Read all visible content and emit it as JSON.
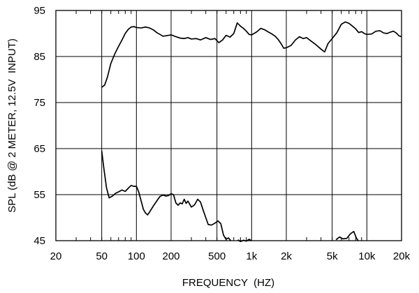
{
  "chart_data": {
    "type": "line",
    "xlabel": "FREQUENCY  (HZ)",
    "ylabel": "SPL (dB @ 2 METER, 12.5V  INPUT)",
    "x_scale": "log",
    "xlim": [
      20,
      20000
    ],
    "ylim": [
      45,
      95
    ],
    "x_ticks": [
      {
        "value": 20,
        "label": "20"
      },
      {
        "value": 50,
        "label": "50"
      },
      {
        "value": 100,
        "label": "100"
      },
      {
        "value": 200,
        "label": "200"
      },
      {
        "value": 500,
        "label": "500"
      },
      {
        "value": 1000,
        "label": "1k"
      },
      {
        "value": 2000,
        "label": "2k"
      },
      {
        "value": 5000,
        "label": "5k"
      },
      {
        "value": 10000,
        "label": "10k"
      },
      {
        "value": 20000,
        "label": "20k"
      }
    ],
    "y_ticks": [
      {
        "value": 45,
        "label": "45"
      },
      {
        "value": 55,
        "label": "55"
      },
      {
        "value": 65,
        "label": "65"
      },
      {
        "value": 75,
        "label": "75"
      },
      {
        "value": 85,
        "label": "85"
      },
      {
        "value": 95,
        "label": "95"
      }
    ],
    "grid": true,
    "series": [
      {
        "points": [
          [
            50,
            78.3
          ],
          [
            53,
            78.8
          ],
          [
            56,
            80.5
          ],
          [
            60,
            83.5
          ],
          [
            65,
            85.6
          ],
          [
            70,
            87.2
          ],
          [
            75,
            88.6
          ],
          [
            80,
            90.0
          ],
          [
            85,
            90.9
          ],
          [
            90,
            91.4
          ],
          [
            95,
            91.5
          ],
          [
            100,
            91.3
          ],
          [
            110,
            91.2
          ],
          [
            120,
            91.4
          ],
          [
            130,
            91.2
          ],
          [
            140,
            90.8
          ],
          [
            150,
            90.2
          ],
          [
            160,
            89.8
          ],
          [
            170,
            89.4
          ],
          [
            180,
            89.5
          ],
          [
            200,
            89.7
          ],
          [
            220,
            89.3
          ],
          [
            240,
            89.0
          ],
          [
            260,
            88.9
          ],
          [
            280,
            89.1
          ],
          [
            300,
            88.8
          ],
          [
            330,
            88.9
          ],
          [
            360,
            88.6
          ],
          [
            400,
            89.1
          ],
          [
            440,
            88.7
          ],
          [
            480,
            88.9
          ],
          [
            520,
            88.0
          ],
          [
            560,
            88.6
          ],
          [
            600,
            89.6
          ],
          [
            650,
            89.2
          ],
          [
            700,
            90.0
          ],
          [
            750,
            92.3
          ],
          [
            800,
            91.6
          ],
          [
            850,
            91.1
          ],
          [
            900,
            90.5
          ],
          [
            950,
            89.8
          ],
          [
            1000,
            89.7
          ],
          [
            1100,
            90.3
          ],
          [
            1200,
            91.1
          ],
          [
            1300,
            90.8
          ],
          [
            1400,
            90.3
          ],
          [
            1500,
            89.9
          ],
          [
            1600,
            89.4
          ],
          [
            1700,
            88.7
          ],
          [
            1800,
            87.8
          ],
          [
            1900,
            86.8
          ],
          [
            2000,
            86.9
          ],
          [
            2200,
            87.4
          ],
          [
            2400,
            88.6
          ],
          [
            2600,
            89.3
          ],
          [
            2800,
            88.9
          ],
          [
            3000,
            89.1
          ],
          [
            3300,
            88.3
          ],
          [
            3600,
            87.6
          ],
          [
            4000,
            86.6
          ],
          [
            4300,
            86.0
          ],
          [
            4600,
            87.8
          ],
          [
            5000,
            88.9
          ],
          [
            5500,
            90.2
          ],
          [
            6000,
            92.0
          ],
          [
            6500,
            92.5
          ],
          [
            7000,
            92.2
          ],
          [
            7500,
            91.6
          ],
          [
            8000,
            91.0
          ],
          [
            8500,
            90.2
          ],
          [
            9000,
            90.4
          ],
          [
            9500,
            90.0
          ],
          [
            10000,
            89.8
          ],
          [
            11000,
            89.9
          ],
          [
            12000,
            90.5
          ],
          [
            13000,
            90.6
          ],
          [
            14000,
            90.1
          ],
          [
            15000,
            90.0
          ],
          [
            16000,
            90.3
          ],
          [
            17000,
            90.5
          ],
          [
            18000,
            90.1
          ],
          [
            19000,
            89.5
          ],
          [
            20000,
            89.3
          ]
        ]
      },
      {
        "points": [
          [
            50,
            64.5
          ],
          [
            52,
            61.0
          ],
          [
            55,
            56.5
          ],
          [
            58,
            54.3
          ],
          [
            62,
            54.7
          ],
          [
            66,
            55.3
          ],
          [
            70,
            55.6
          ],
          [
            75,
            56.0
          ],
          [
            80,
            55.7
          ],
          [
            85,
            56.4
          ],
          [
            90,
            57.0
          ],
          [
            95,
            56.8
          ],
          [
            100,
            56.8
          ],
          [
            105,
            55.5
          ],
          [
            110,
            53.6
          ],
          [
            115,
            51.8
          ],
          [
            120,
            51.0
          ],
          [
            125,
            50.6
          ],
          [
            130,
            51.2
          ],
          [
            140,
            52.5
          ],
          [
            150,
            53.6
          ],
          [
            160,
            54.6
          ],
          [
            170,
            54.9
          ],
          [
            180,
            54.7
          ],
          [
            190,
            54.8
          ],
          [
            200,
            55.2
          ],
          [
            210,
            55.0
          ],
          [
            220,
            53.2
          ],
          [
            230,
            52.7
          ],
          [
            240,
            53.2
          ],
          [
            250,
            53.0
          ],
          [
            260,
            54.0
          ],
          [
            270,
            53.1
          ],
          [
            280,
            53.6
          ],
          [
            300,
            52.3
          ],
          [
            320,
            52.8
          ],
          [
            340,
            54.0
          ],
          [
            360,
            53.4
          ],
          [
            380,
            51.6
          ],
          [
            400,
            50.0
          ],
          [
            420,
            48.5
          ],
          [
            450,
            48.4
          ],
          [
            480,
            48.8
          ],
          [
            510,
            49.3
          ],
          [
            540,
            48.7
          ],
          [
            570,
            46.2
          ],
          [
            600,
            45.3
          ],
          [
            630,
            45.6
          ],
          [
            660,
            45.0
          ]
        ]
      },
      {
        "points": [
          [
            760,
            45.2
          ],
          [
            800,
            44.8
          ],
          [
            850,
            45.1
          ],
          [
            900,
            44.9
          ],
          [
            950,
            45.3
          ],
          [
            1000,
            45.0
          ]
        ]
      },
      {
        "points": [
          [
            5400,
            45.2
          ],
          [
            5800,
            45.8
          ],
          [
            6200,
            45.4
          ],
          [
            6700,
            45.5
          ],
          [
            7200,
            46.5
          ],
          [
            7700,
            47.0
          ],
          [
            8100,
            45.6
          ],
          [
            8400,
            45.0
          ]
        ]
      }
    ]
  }
}
